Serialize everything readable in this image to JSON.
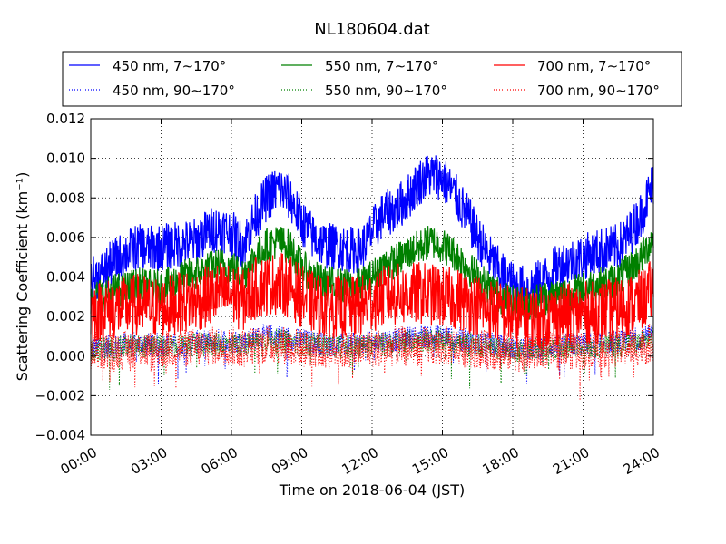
{
  "chart_data": {
    "type": "line",
    "title": "NL180604.dat",
    "xlabel": "Time on 2018-06-04 (JST)",
    "ylabel": "Scattering Coefficient (km⁻¹)",
    "xlim": [
      "00:00",
      "24:00"
    ],
    "ylim": [
      -0.004,
      0.012
    ],
    "xticks": [
      "00:00",
      "03:00",
      "06:00",
      "09:00",
      "12:00",
      "15:00",
      "18:00",
      "21:00",
      "24:00"
    ],
    "yticks": [
      "−0.004",
      "−0.002",
      "0.000",
      "0.002",
      "0.004",
      "0.006",
      "0.008",
      "0.010",
      "0.012"
    ],
    "grid": true,
    "legend_position": "top",
    "x_hours": [
      0,
      0.5,
      1,
      1.5,
      2,
      2.5,
      3,
      3.5,
      4,
      4.5,
      5,
      5.5,
      6,
      6.5,
      7,
      7.5,
      8,
      8.5,
      9,
      9.5,
      10,
      10.5,
      11,
      11.5,
      12,
      12.5,
      13,
      13.5,
      14,
      14.5,
      15,
      15.5,
      16,
      16.5,
      17,
      17.5,
      18,
      18.5,
      19,
      19.5,
      20,
      20.5,
      21,
      21.5,
      22,
      22.5,
      23,
      23.5,
      24
    ],
    "series": [
      {
        "name": "450 nm, 7∼170°",
        "color": "#0000ff",
        "style": "solid",
        "values": [
          0.0038,
          0.0042,
          0.0048,
          0.0052,
          0.0055,
          0.0054,
          0.0055,
          0.0056,
          0.0057,
          0.0058,
          0.0063,
          0.0065,
          0.0062,
          0.0056,
          0.007,
          0.008,
          0.0085,
          0.008,
          0.0068,
          0.006,
          0.0056,
          0.0055,
          0.0054,
          0.0053,
          0.0063,
          0.0072,
          0.0074,
          0.008,
          0.0088,
          0.0092,
          0.009,
          0.0082,
          0.0072,
          0.006,
          0.005,
          0.0042,
          0.0036,
          0.0034,
          0.0036,
          0.004,
          0.0046,
          0.0048,
          0.005,
          0.0052,
          0.0054,
          0.0055,
          0.0062,
          0.0072,
          0.0088
        ]
      },
      {
        "name": "550 nm, 7∼170°",
        "color": "#008000",
        "style": "solid",
        "values": [
          0.003,
          0.0031,
          0.0033,
          0.0034,
          0.0036,
          0.0035,
          0.0035,
          0.0037,
          0.004,
          0.0042,
          0.0044,
          0.0046,
          0.0045,
          0.0041,
          0.005,
          0.0056,
          0.0058,
          0.0055,
          0.0045,
          0.004,
          0.0037,
          0.0036,
          0.0035,
          0.0036,
          0.004,
          0.0046,
          0.0048,
          0.0052,
          0.0055,
          0.0058,
          0.0056,
          0.0052,
          0.0046,
          0.004,
          0.0035,
          0.003,
          0.0027,
          0.0026,
          0.0028,
          0.003,
          0.0031,
          0.0032,
          0.0034,
          0.0036,
          0.0037,
          0.0039,
          0.0044,
          0.005,
          0.006
        ]
      },
      {
        "name": "700 nm, 7∼170°",
        "color": "#ff0000",
        "style": "solid",
        "values": [
          0.0022,
          0.0023,
          0.0024,
          0.0025,
          0.0026,
          0.0025,
          0.0024,
          0.0026,
          0.0027,
          0.0028,
          0.003,
          0.0032,
          0.0031,
          0.0028,
          0.0034,
          0.0036,
          0.0037,
          0.0035,
          0.003,
          0.0027,
          0.0025,
          0.0025,
          0.0024,
          0.0025,
          0.0028,
          0.003,
          0.0031,
          0.0031,
          0.0032,
          0.0031,
          0.003,
          0.0029,
          0.0028,
          0.0026,
          0.0024,
          0.0022,
          0.002,
          0.0019,
          0.0019,
          0.002,
          0.0021,
          0.0021,
          0.0022,
          0.0022,
          0.0023,
          0.0024,
          0.0026,
          0.0028,
          0.0034
        ]
      },
      {
        "name": "450 nm, 90∼170°",
        "color": "#0000ff",
        "style": "dotted",
        "values": [
          0.0004,
          0.0005,
          0.0005,
          0.0006,
          0.0006,
          0.0006,
          0.0006,
          0.0006,
          0.0006,
          0.0007,
          0.0007,
          0.0008,
          0.0008,
          0.0007,
          0.0009,
          0.001,
          0.001,
          0.0009,
          0.0008,
          0.0007,
          0.0006,
          0.0006,
          0.0006,
          0.0006,
          0.0007,
          0.0008,
          0.0008,
          0.0009,
          0.001,
          0.001,
          0.001,
          0.0009,
          0.0008,
          0.0007,
          0.0006,
          0.0005,
          0.0004,
          0.0004,
          0.0004,
          0.0005,
          0.0005,
          0.0006,
          0.0006,
          0.0006,
          0.0007,
          0.0007,
          0.0008,
          0.0009,
          0.001
        ]
      },
      {
        "name": "550 nm, 90∼170°",
        "color": "#008000",
        "style": "dotted",
        "values": [
          0.0003,
          0.0004,
          0.0004,
          0.0005,
          0.0005,
          0.0005,
          0.0005,
          0.0005,
          0.0005,
          0.0006,
          0.0006,
          0.0006,
          0.0006,
          0.0006,
          0.0007,
          0.0008,
          0.0008,
          0.0007,
          0.0006,
          0.0006,
          0.0005,
          0.0005,
          0.0005,
          0.0005,
          0.0006,
          0.0006,
          0.0007,
          0.0007,
          0.0008,
          0.0008,
          0.0008,
          0.0007,
          0.0006,
          0.0006,
          0.0005,
          0.0004,
          0.0003,
          0.0003,
          0.0004,
          0.0004,
          0.0004,
          0.0005,
          0.0005,
          0.0005,
          0.0006,
          0.0006,
          0.0006,
          0.0007,
          0.0009
        ]
      },
      {
        "name": "700 nm, 90∼170°",
        "color": "#ff0000",
        "style": "dotted",
        "values": [
          0.0002,
          0.0003,
          0.0003,
          0.0003,
          0.0004,
          0.0003,
          0.0003,
          0.0004,
          0.0004,
          0.0004,
          0.0005,
          0.0005,
          0.0005,
          0.0004,
          0.0005,
          0.0006,
          0.0006,
          0.0005,
          0.0004,
          0.0004,
          0.0003,
          0.0003,
          0.0003,
          0.0003,
          0.0004,
          0.0004,
          0.0005,
          0.0005,
          0.0005,
          0.0005,
          0.0005,
          0.0005,
          0.0004,
          0.0004,
          0.0003,
          0.0002,
          0.0002,
          0.0002,
          0.0002,
          0.0003,
          0.0003,
          0.0003,
          0.0003,
          0.0004,
          0.0004,
          0.0004,
          0.0005,
          0.0005,
          0.0007
        ]
      }
    ]
  }
}
